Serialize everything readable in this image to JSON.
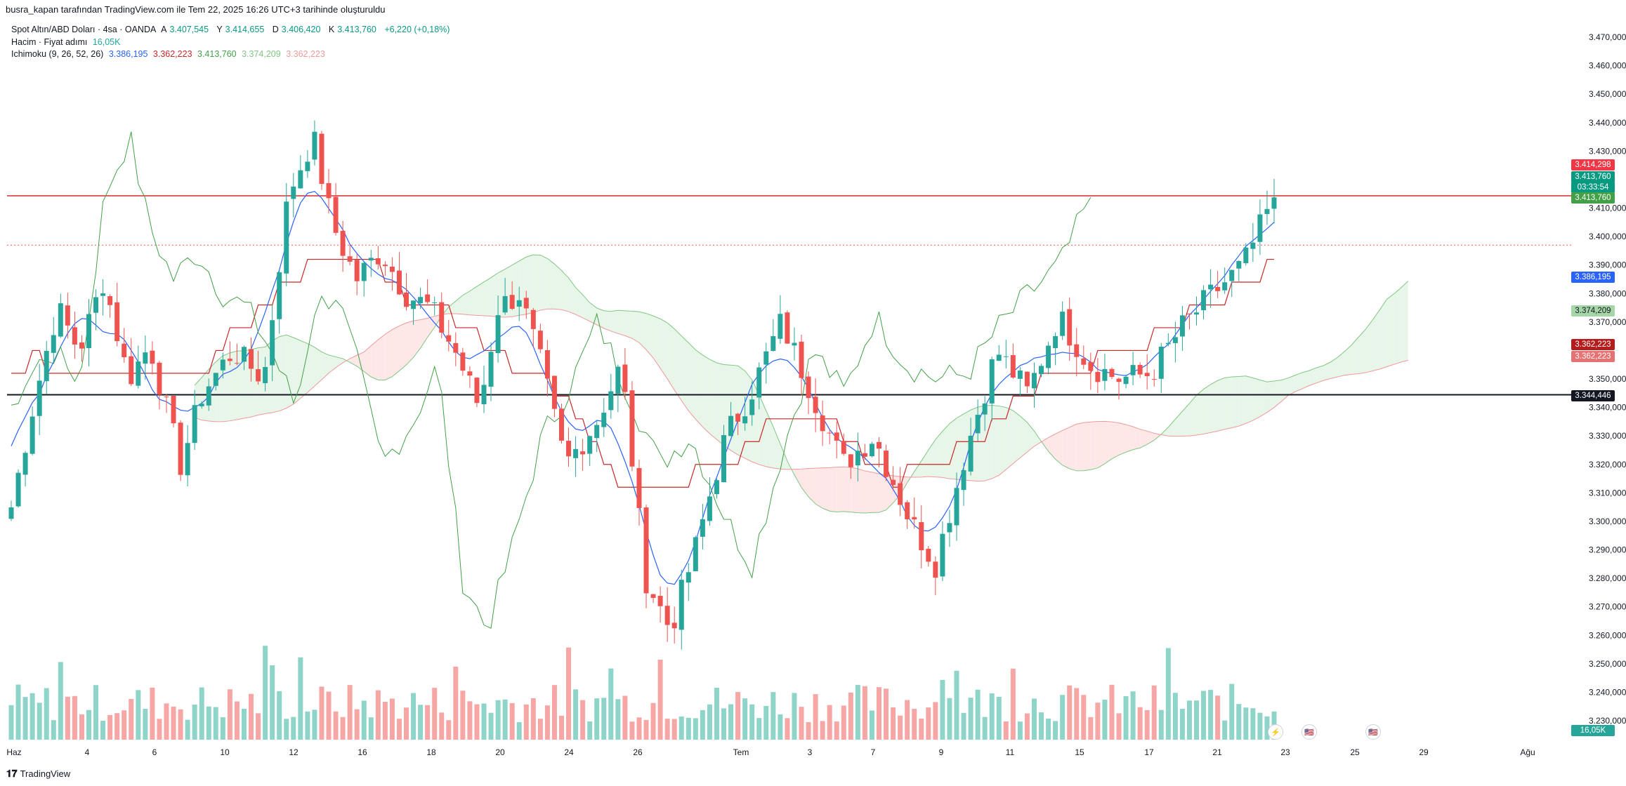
{
  "caption": "busra_kapan tarafından TradingView.com ile Tem 22, 2025 16:26 UTC+3 tarihinde oluşturuldu",
  "legend": {
    "symbol": "Spot Altın/ABD Doları · 4sa · OANDA",
    "a_label": "A",
    "a_value": "3.407,545",
    "y_label": "Y",
    "y_value": "3.414,655",
    "d_label": "D",
    "d_value": "3.406,420",
    "k_label": "K",
    "k_value": "3.413,760",
    "change": "+6,220 (+0,18%)",
    "volume_label": "Hacim · Fiyat adımı",
    "volume_value": "16,05K",
    "ichimoku_label": "Ichimoku (9, 26, 52, 26)",
    "ich_conversion": "3.386,195",
    "ich_base": "3.362,223",
    "ich_lagging": "3.413,760",
    "ich_spanA": "3.374,209",
    "ich_spanB": "3.362,223"
  },
  "price_axis": [
    "3.470,000",
    "3.460,000",
    "3.450,000",
    "3.440,000",
    "3.430,000",
    "3.410,000",
    "3.400,000",
    "3.390,000",
    "3.380,000",
    "3.370,000",
    "3.350,000",
    "3.340,000",
    "3.330,000",
    "3.320,000",
    "3.310,000",
    "3.300,000",
    "3.290,000",
    "3.280,000",
    "3.270,000",
    "3.260,000",
    "3.250,000",
    "3.240,000",
    "3.230,000"
  ],
  "time_axis": [
    "Haz",
    "4",
    "6",
    "10",
    "12",
    "16",
    "18",
    "20",
    "24",
    "26",
    "Tem",
    "3",
    "7",
    "9",
    "11",
    "15",
    "17",
    "21",
    "23",
    "25",
    "29",
    "Ağu"
  ],
  "price_tags": {
    "high_tag": "3.414,298",
    "last_price": "3.413,760",
    "countdown": "03:33:54",
    "lagging_tag": "3.413,760",
    "conversion_tag": "3.386,195",
    "spanA_tag": "3.374,209",
    "base_tag": "3.362,223",
    "spanB_tag": "3.362,223",
    "hline_tag": "3.344,446",
    "volume_tag": "16,05K"
  },
  "colors": {
    "up": "#26a69a",
    "down": "#ef5350",
    "conversion": "#2962ff",
    "base": "#c62828",
    "lagging": "#43a047",
    "cloud_bull": "#e8f5e9",
    "cloud_bear": "#fde7e7"
  },
  "footer": {
    "brand": "TradingView"
  },
  "chart_data": {
    "type": "candlestick",
    "symbol": "XAUUSD",
    "timeframe": "4h",
    "ylim": [
      3225,
      3475
    ],
    "horizontal_lines": [
      3414.3,
      3344.446
    ],
    "last_close": 3413.76
  }
}
